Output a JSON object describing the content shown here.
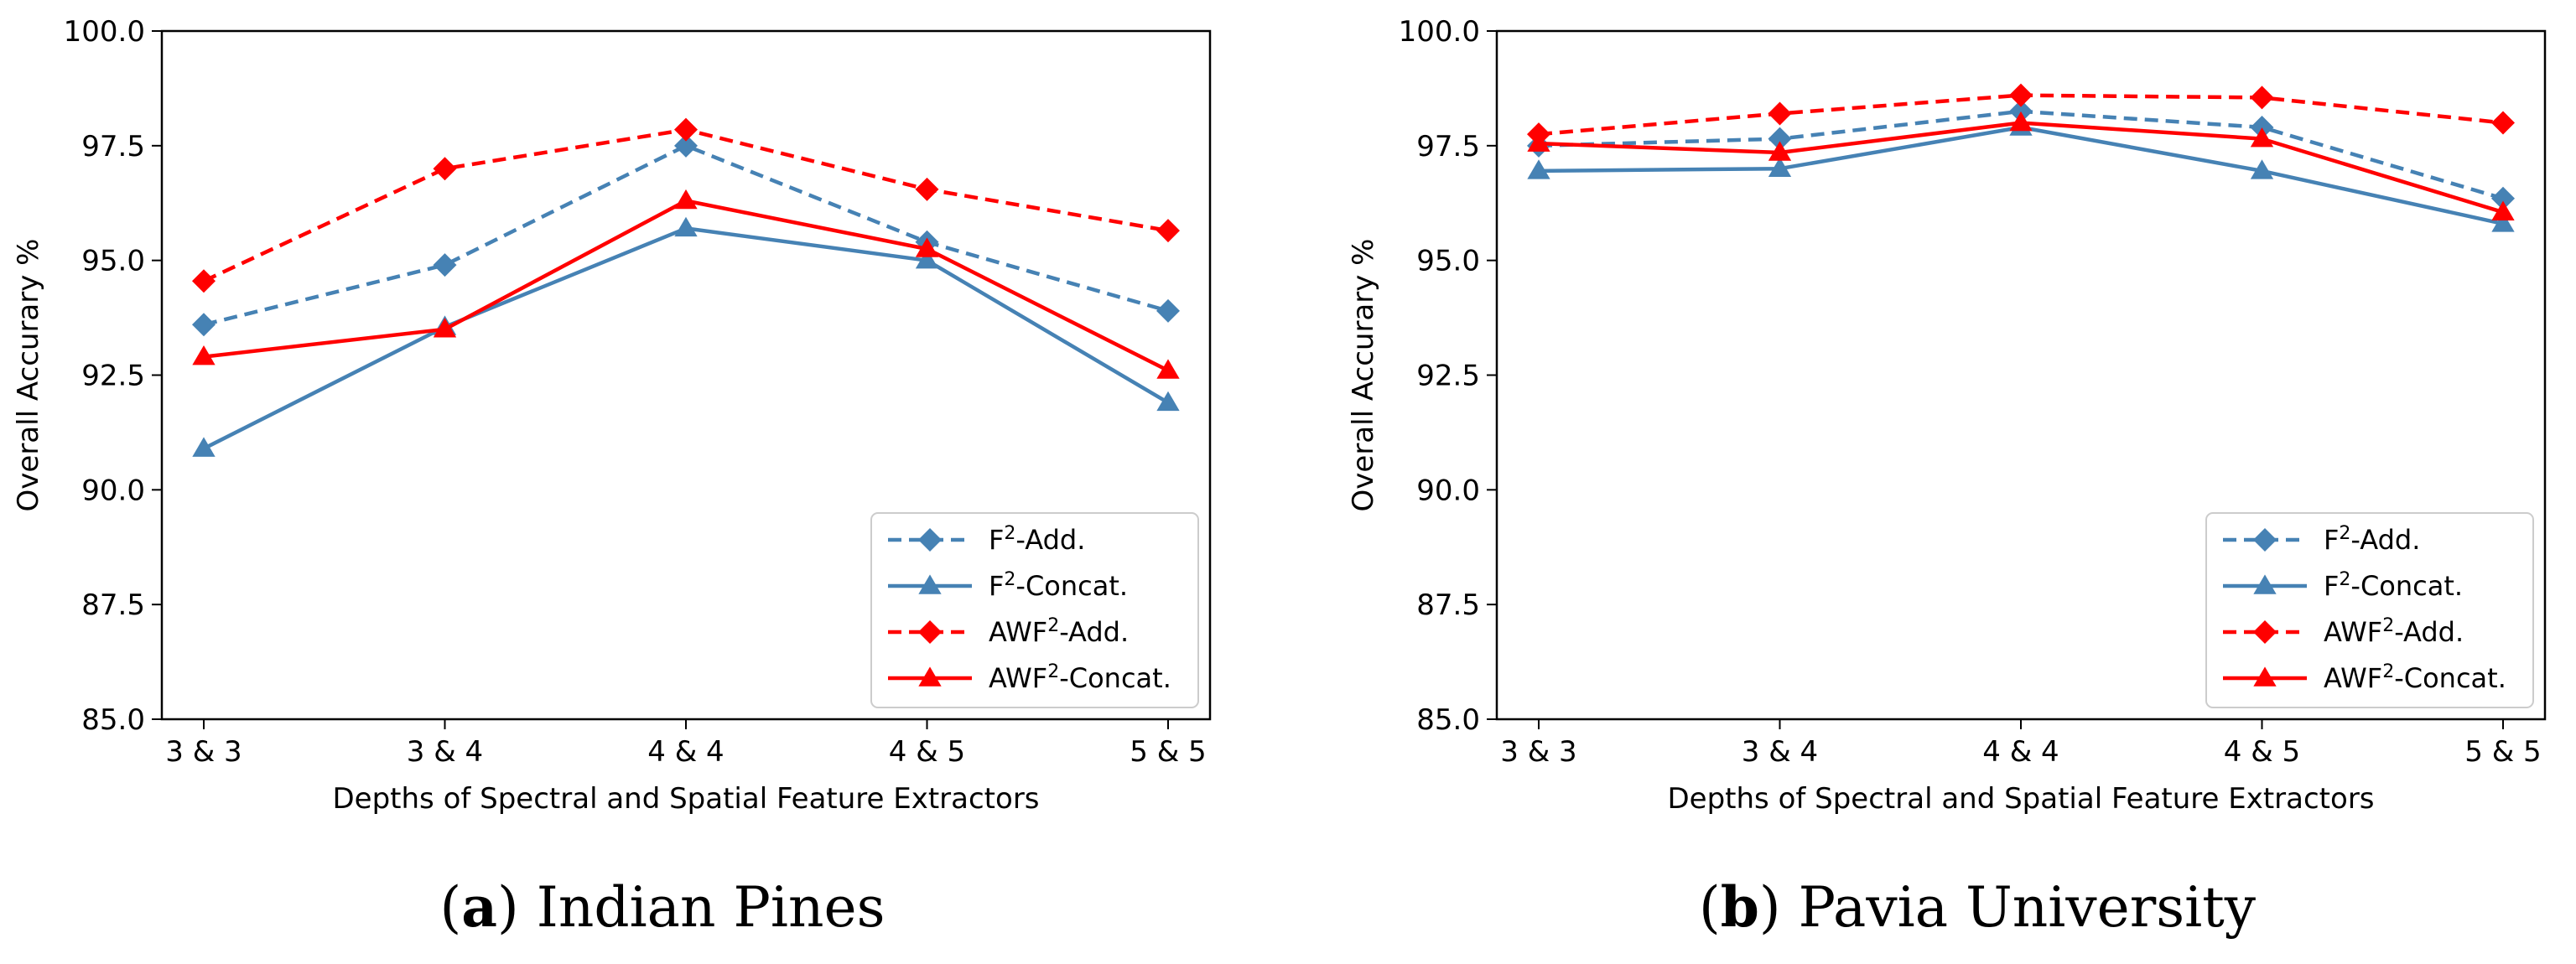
{
  "colors": {
    "f2": "#4682b4",
    "awf2": "#ff0000",
    "axis": "#000000",
    "background": "#ffffff"
  },
  "chart_data": [
    {
      "type": "line",
      "caption_letter": "a",
      "caption_text": "Indian Pines",
      "xlabel": "Depths of Spectral and Spatial Feature Extractors",
      "ylabel": "Overall Accurary %",
      "categories": [
        "3 & 3",
        "3 & 4",
        "4 & 4",
        "4 & 5",
        "5 & 5"
      ],
      "ylim": [
        85.0,
        100.0
      ],
      "yticks": [
        "85.0",
        "87.5",
        "90.0",
        "92.5",
        "95.0",
        "97.5",
        "100.0"
      ],
      "grid": false,
      "legend_position": "lower-right",
      "series": [
        {
          "name_base": "F",
          "name_sup": "2",
          "name_rest": "-Add.",
          "color": "#4682b4",
          "dash": true,
          "marker": "diamond",
          "values": [
            93.6,
            94.9,
            97.5,
            95.4,
            93.9
          ]
        },
        {
          "name_base": "F",
          "name_sup": "2",
          "name_rest": "-Concat.",
          "color": "#4682b4",
          "dash": false,
          "marker": "triangle",
          "values": [
            90.9,
            93.55,
            95.7,
            95.0,
            91.9
          ]
        },
        {
          "name_base": "AWF",
          "name_sup": "2",
          "name_rest": "-Add.",
          "color": "#ff0000",
          "dash": true,
          "marker": "diamond",
          "values": [
            94.55,
            97.0,
            97.85,
            96.55,
            95.65
          ]
        },
        {
          "name_base": "AWF",
          "name_sup": "2",
          "name_rest": "-Concat.",
          "color": "#ff0000",
          "dash": false,
          "marker": "triangle",
          "values": [
            92.9,
            93.5,
            96.3,
            95.25,
            92.6
          ]
        }
      ]
    },
    {
      "type": "line",
      "caption_letter": "b",
      "caption_text": "Pavia University",
      "xlabel": "Depths of Spectral and Spatial Feature Extractors",
      "ylabel": "Overall Accurary %",
      "categories": [
        "3 & 3",
        "3 & 4",
        "4 & 4",
        "4 & 5",
        "5 & 5"
      ],
      "ylim": [
        85.0,
        100.0
      ],
      "yticks": [
        "85.0",
        "87.5",
        "90.0",
        "92.5",
        "95.0",
        "97.5",
        "100.0"
      ],
      "grid": false,
      "legend_position": "lower-right",
      "series": [
        {
          "name_base": "F",
          "name_sup": "2",
          "name_rest": "-Add.",
          "color": "#4682b4",
          "dash": true,
          "marker": "diamond",
          "values": [
            97.5,
            97.65,
            98.25,
            97.9,
            96.35
          ]
        },
        {
          "name_base": "F",
          "name_sup": "2",
          "name_rest": "-Concat.",
          "color": "#4682b4",
          "dash": false,
          "marker": "triangle",
          "values": [
            96.95,
            97.0,
            97.9,
            96.95,
            95.8
          ]
        },
        {
          "name_base": "AWF",
          "name_sup": "2",
          "name_rest": "-Add.",
          "color": "#ff0000",
          "dash": true,
          "marker": "diamond",
          "values": [
            97.75,
            98.2,
            98.6,
            98.55,
            98.0
          ]
        },
        {
          "name_base": "AWF",
          "name_sup": "2",
          "name_rest": "-Concat.",
          "color": "#ff0000",
          "dash": false,
          "marker": "triangle",
          "values": [
            97.55,
            97.35,
            98.0,
            97.65,
            96.05
          ]
        }
      ]
    }
  ]
}
